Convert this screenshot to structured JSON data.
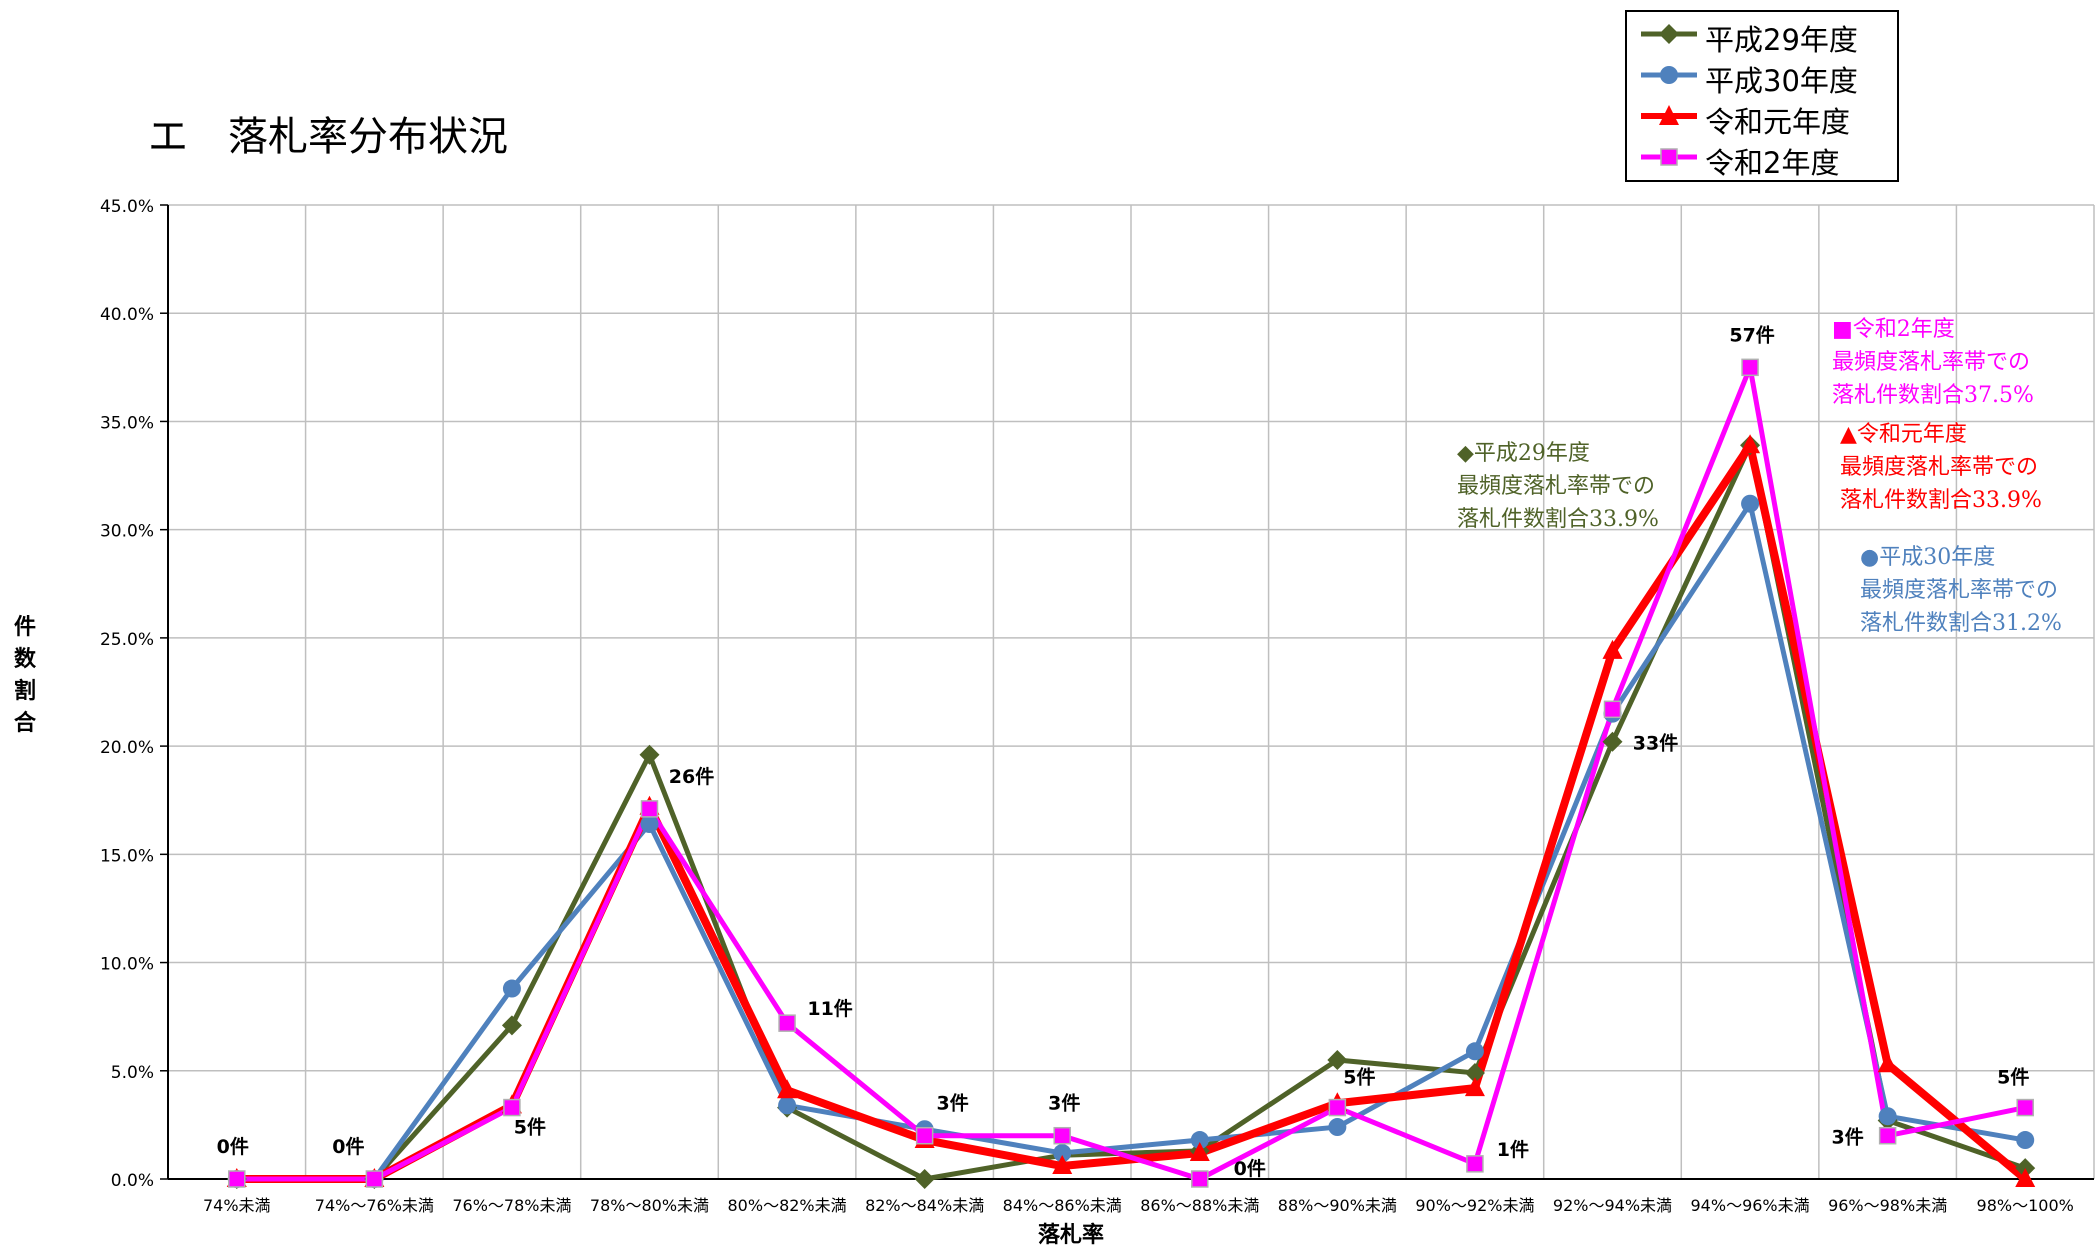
{
  "page_title": "エ　落札率分布状況",
  "colors": {
    "h29": "#4f6228",
    "h30": "#4f81bd",
    "r1": "#ff0000",
    "r2": "#ff00ff",
    "grid": "#bfbfbf"
  },
  "legend": [
    {
      "label": "平成29年度",
      "marker": "diamond"
    },
    {
      "label": "平成30年度",
      "marker": "circle"
    },
    {
      "label": "令和元年度",
      "marker": "triangle"
    },
    {
      "label": "令和2年度",
      "marker": "square"
    }
  ],
  "annotations": {
    "r2": {
      "marker": "■",
      "line1": "令和2年度",
      "line2": "最頻度落札率帯での",
      "line3": "落札件数割合37.5%"
    },
    "r1": {
      "marker": "▲",
      "line1": "令和元年度",
      "line2": "最頻度落札率帯での",
      "line3": "落札件数割合33.9%"
    },
    "h29": {
      "marker": "◆",
      "line1": "平成29年度",
      "line2": "最頻度落札率帯での",
      "line3": "落札件数割合33.9%"
    },
    "h30": {
      "marker": "●",
      "line1": "平成30年度",
      "line2": "最頻度落札率帯での",
      "line3": "落札件数割合31.2%"
    }
  },
  "chart_data": {
    "type": "line",
    "xlabel": "落札率",
    "ylabel": "件数割合",
    "ylim": [
      0,
      45
    ],
    "yticks": [
      "0.0%",
      "5.0%",
      "10.0%",
      "15.0%",
      "20.0%",
      "25.0%",
      "30.0%",
      "35.0%",
      "40.0%",
      "45.0%"
    ],
    "grid": true,
    "legend_position": "top-right",
    "categories": [
      "74%未満",
      "74%～76%未満",
      "76%～78%未満",
      "78%～80%未満",
      "80%～82%未満",
      "82%～84%未満",
      "84%～86%未満",
      "86%～88%未満",
      "88%～90%未満",
      "90%～92%未満",
      "92%～94%未満",
      "94%～96%未満",
      "96%～98%未満",
      "98%～100%"
    ],
    "series": [
      {
        "name": "平成29年度",
        "values": [
          0.0,
          0.0,
          7.1,
          19.6,
          3.3,
          0.0,
          1.1,
          1.3,
          5.5,
          4.9,
          20.2,
          33.9,
          2.7,
          0.5
        ]
      },
      {
        "name": "平成30年度",
        "values": [
          0.0,
          0.0,
          8.8,
          16.4,
          3.4,
          2.3,
          1.2,
          1.8,
          2.4,
          5.9,
          21.5,
          31.2,
          2.9,
          1.8
        ]
      },
      {
        "name": "令和元年度",
        "values": [
          0.0,
          0.0,
          3.4,
          17.2,
          4.1,
          1.8,
          0.6,
          1.2,
          3.5,
          4.2,
          24.4,
          33.9,
          5.3,
          0.0
        ]
      },
      {
        "name": "令和2年度",
        "values": [
          0.0,
          0.0,
          3.3,
          17.1,
          7.2,
          2.0,
          2.0,
          0.0,
          3.3,
          0.7,
          21.7,
          37.5,
          2.0,
          3.3
        ]
      }
    ],
    "data_labels": [
      {
        "category_index": 0,
        "value": 0.0,
        "text": "0件"
      },
      {
        "category_index": 1,
        "value": 0.0,
        "text": "0件"
      },
      {
        "category_index": 2,
        "value": 3.3,
        "text": "5件"
      },
      {
        "category_index": 3,
        "value": 17.1,
        "text": "26件"
      },
      {
        "category_index": 4,
        "value": 7.2,
        "text": "11件"
      },
      {
        "category_index": 5,
        "value": 2.0,
        "text": "3件"
      },
      {
        "category_index": 6,
        "value": 2.0,
        "text": "3件"
      },
      {
        "category_index": 7,
        "value": 0.0,
        "text": "0件"
      },
      {
        "category_index": 8,
        "value": 3.3,
        "text": "5件"
      },
      {
        "category_index": 9,
        "value": 0.7,
        "text": "1件"
      },
      {
        "category_index": 10,
        "value": 21.7,
        "text": "33件"
      },
      {
        "category_index": 11,
        "value": 37.5,
        "text": "57件"
      },
      {
        "category_index": 12,
        "value": 2.0,
        "text": "3件"
      },
      {
        "category_index": 13,
        "value": 3.3,
        "text": "5件"
      }
    ]
  }
}
